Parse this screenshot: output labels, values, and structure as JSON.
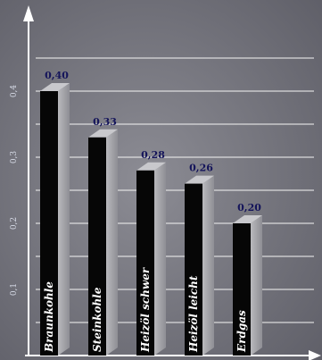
{
  "chart_data": {
    "type": "bar",
    "title": "",
    "xlabel": "",
    "ylabel": "",
    "categories": [
      "Braunkohle",
      "Steinkohle",
      "Heizöl schwer",
      "Heizöl leicht",
      "Erdgas"
    ],
    "values": [
      0.4,
      0.33,
      0.28,
      0.26,
      0.2
    ],
    "value_labels": [
      "0,40",
      "0,33",
      "0,28",
      "0,26",
      "0,20"
    ],
    "y_ticks": [
      0.1,
      0.2,
      0.3,
      0.4
    ],
    "y_tick_labels": [
      "0,1",
      "0,2",
      "0,3",
      "0,4"
    ],
    "ylim": [
      0,
      0.5
    ],
    "grid": true,
    "legend": "none",
    "colors": {
      "background": "#7a7a82",
      "bar_front": "#060606",
      "bar_side": "#a9a9ad",
      "bar_top": "#c8c8cc",
      "grid": "#eeeeee",
      "axis": "#ffffff",
      "value_text": "#14145a",
      "category_text": "#ffffff"
    }
  }
}
